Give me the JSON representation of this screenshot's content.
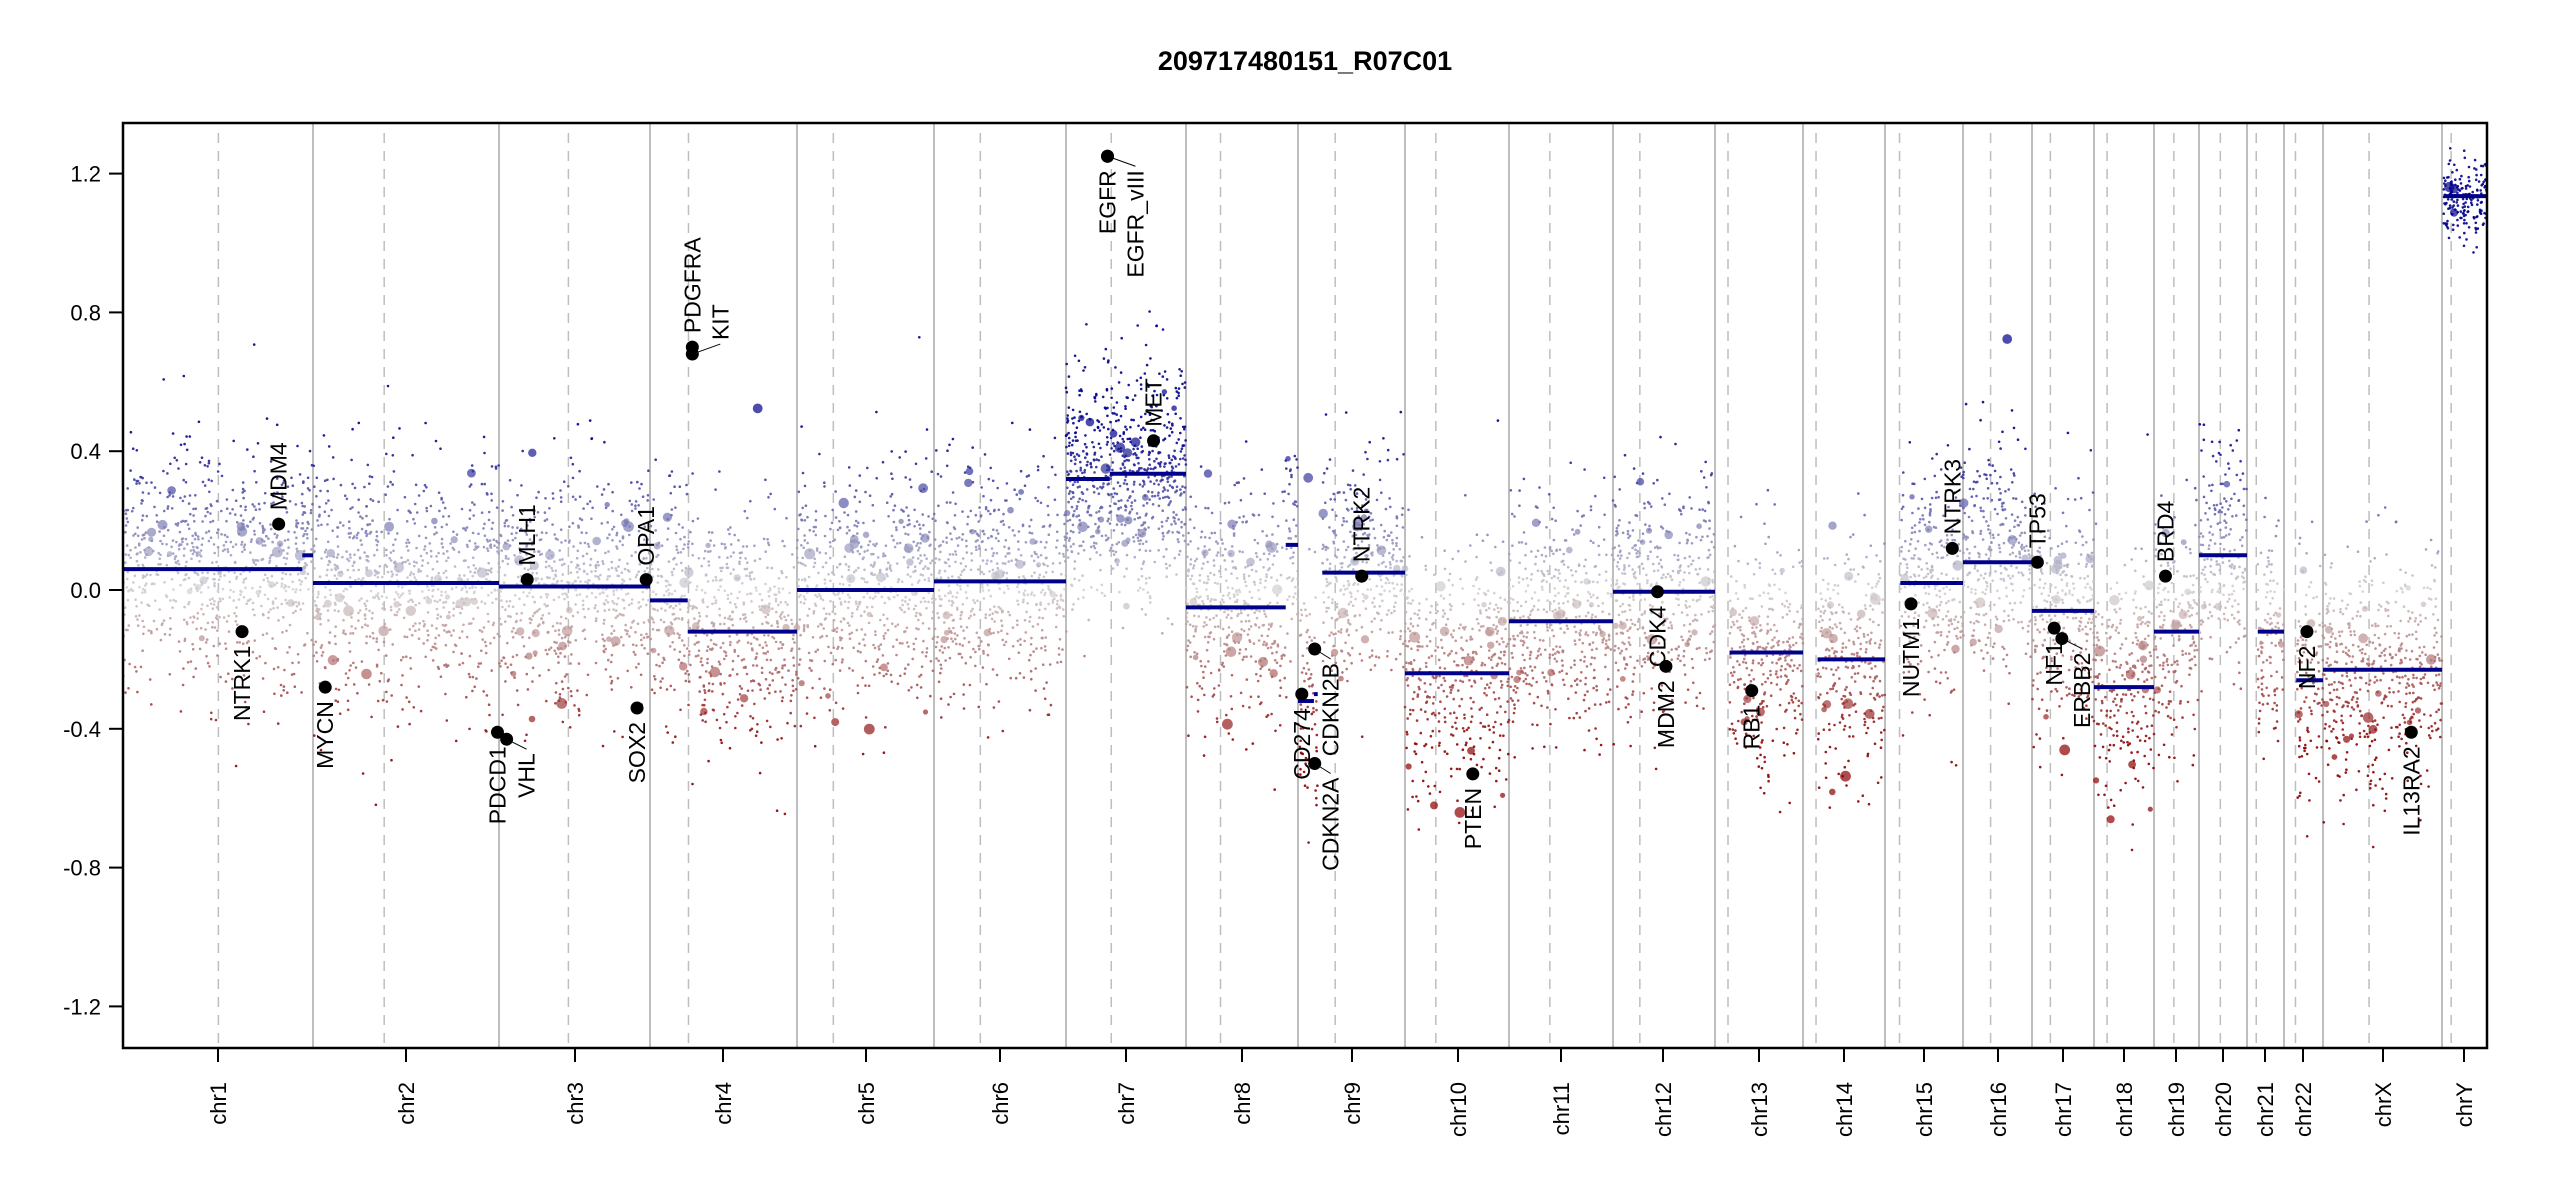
{
  "chart_data": {
    "type": "scatter",
    "title": "209717480151_R07C01",
    "xlabel": "",
    "ylabel": "",
    "ylim": [
      -1.35,
      1.35
    ],
    "yticks": [
      -1.2,
      -0.8,
      -0.4,
      0.0,
      0.4,
      0.8,
      1.2
    ],
    "ytick_labels": [
      "-1.2",
      "-0.8",
      "-0.4",
      "0.0",
      "0.4",
      "0.8",
      "1.2"
    ],
    "grid": false,
    "legend": "none",
    "chromosomes": [
      {
        "name": "chr1",
        "length": 249,
        "centromere": 125
      },
      {
        "name": "chr2",
        "length": 243,
        "centromere": 93
      },
      {
        "name": "chr3",
        "length": 198,
        "centromere": 91
      },
      {
        "name": "chr4",
        "length": 191,
        "centromere": 50
      },
      {
        "name": "chr5",
        "length": 181,
        "centromere": 48
      },
      {
        "name": "chr6",
        "length": 171,
        "centromere": 60
      },
      {
        "name": "chr7",
        "length": 159,
        "centromere": 60
      },
      {
        "name": "chr8",
        "length": 146,
        "centromere": 45
      },
      {
        "name": "chr9",
        "length": 141,
        "centromere": 49
      },
      {
        "name": "chr10",
        "length": 135,
        "centromere": 40
      },
      {
        "name": "chr11",
        "length": 135,
        "centromere": 53
      },
      {
        "name": "chr12",
        "length": 133,
        "centromere": 35
      },
      {
        "name": "chr13",
        "length": 115,
        "centromere": 17
      },
      {
        "name": "chr14",
        "length": 107,
        "centromere": 17
      },
      {
        "name": "chr15",
        "length": 102,
        "centromere": 19
      },
      {
        "name": "chr16",
        "length": 90,
        "centromere": 36
      },
      {
        "name": "chr17",
        "length": 81,
        "centromere": 24
      },
      {
        "name": "chr18",
        "length": 78,
        "centromere": 17
      },
      {
        "name": "chr19",
        "length": 59,
        "centromere": 26
      },
      {
        "name": "chr20",
        "length": 63,
        "centromere": 28
      },
      {
        "name": "chr21",
        "length": 48,
        "centromere": 12
      },
      {
        "name": "chr22",
        "length": 51,
        "centromere": 15
      },
      {
        "name": "chrX",
        "length": 155,
        "centromere": 60
      },
      {
        "name": "chrY",
        "length": 59,
        "centromere": 12
      }
    ],
    "segments": [
      {
        "chr": "chr1",
        "start": 0,
        "end": 235,
        "value": 0.06
      },
      {
        "chr": "chr1",
        "start": 235,
        "end": 249,
        "value": 0.1
      },
      {
        "chr": "chr2",
        "start": 0,
        "end": 243,
        "value": 0.02
      },
      {
        "chr": "chr3",
        "start": 0,
        "end": 198,
        "value": 0.01
      },
      {
        "chr": "chr4",
        "start": 0,
        "end": 49,
        "value": -0.03
      },
      {
        "chr": "chr4",
        "start": 49,
        "end": 191,
        "value": -0.12
      },
      {
        "chr": "chr5",
        "start": 0,
        "end": 181,
        "value": 0.0
      },
      {
        "chr": "chr6",
        "start": 0,
        "end": 171,
        "value": 0.025
      },
      {
        "chr": "chr7",
        "start": 0,
        "end": 58,
        "value": 0.32
      },
      {
        "chr": "chr7",
        "start": 58,
        "end": 159,
        "value": 0.335
      },
      {
        "chr": "chr8",
        "start": 0,
        "end": 130,
        "value": -0.05
      },
      {
        "chr": "chr8",
        "start": 130,
        "end": 146,
        "value": 0.13
      },
      {
        "chr": "chr9",
        "start": 0,
        "end": 21,
        "value": -0.32
      },
      {
        "chr": "chr9",
        "start": 21,
        "end": 26,
        "value": -0.3
      },
      {
        "chr": "chr9",
        "start": 32,
        "end": 141,
        "value": 0.05
      },
      {
        "chr": "chr10",
        "start": 0,
        "end": 135,
        "value": -0.24
      },
      {
        "chr": "chr11",
        "start": 0,
        "end": 135,
        "value": -0.09
      },
      {
        "chr": "chr12",
        "start": 0,
        "end": 133,
        "value": -0.005
      },
      {
        "chr": "chr13",
        "start": 19,
        "end": 115,
        "value": -0.18
      },
      {
        "chr": "chr14",
        "start": 19,
        "end": 107,
        "value": -0.2
      },
      {
        "chr": "chr15",
        "start": 20,
        "end": 102,
        "value": 0.02
      },
      {
        "chr": "chr16",
        "start": 0,
        "end": 90,
        "value": 0.08
      },
      {
        "chr": "chr17",
        "start": 0,
        "end": 81,
        "value": -0.06
      },
      {
        "chr": "chr18",
        "start": 0,
        "end": 78,
        "value": -0.28
      },
      {
        "chr": "chr19",
        "start": 0,
        "end": 59,
        "value": -0.12
      },
      {
        "chr": "chr20",
        "start": 0,
        "end": 63,
        "value": 0.1
      },
      {
        "chr": "chr21",
        "start": 14,
        "end": 48,
        "value": -0.12
      },
      {
        "chr": "chr22",
        "start": 16,
        "end": 51,
        "value": -0.26
      },
      {
        "chrX": true,
        "chr": "chrX",
        "start": 0,
        "end": 155,
        "value": -0.23
      },
      {
        "chr": "chrY",
        "start": 2,
        "end": 59,
        "value": 1.135
      }
    ],
    "genes": [
      {
        "name": "NTRK1",
        "chr": "chr1",
        "pos": 156,
        "value": -0.12,
        "side": "below"
      },
      {
        "name": "MDM4",
        "chr": "chr1",
        "pos": 204,
        "value": 0.19,
        "side": "above"
      },
      {
        "name": "MYCN",
        "chr": "chr2",
        "pos": 16,
        "value": -0.28,
        "side": "below"
      },
      {
        "name": "PDCD1",
        "chr": "chr2",
        "pos": 241,
        "value": -0.41,
        "side": "below"
      },
      {
        "name": "VHL",
        "chr": "chr3",
        "pos": 10,
        "value": -0.43,
        "side": "below"
      },
      {
        "name": "MLH1",
        "chr": "chr3",
        "pos": 37,
        "value": 0.03,
        "side": "above"
      },
      {
        "name": "SOX2",
        "chr": "chr3",
        "pos": 181,
        "value": -0.34,
        "side": "below"
      },
      {
        "name": "OPA1",
        "chr": "chr3",
        "pos": 193,
        "value": 0.03,
        "side": "above"
      },
      {
        "name": "PDGFRA",
        "chr": "chr4",
        "pos": 55,
        "value": 0.7,
        "side": "above"
      },
      {
        "name": "KIT",
        "chr": "chr4",
        "pos": 55,
        "value": 0.68,
        "side": "above"
      },
      {
        "name": "EGFR",
        "chr": "chr7",
        "pos": 55,
        "value": 1.25,
        "side": "below"
      },
      {
        "name": "EGFR_vIII",
        "chr": "chr7",
        "pos": 55,
        "value": 1.25,
        "side": "below"
      },
      {
        "name": "MET",
        "chr": "chr7",
        "pos": 116,
        "value": 0.43,
        "side": "above"
      },
      {
        "name": "CDKN2A",
        "chr": "chr9",
        "pos": 22,
        "value": -0.5,
        "side": "below"
      },
      {
        "name": "CDKN2B",
        "chr": "chr9",
        "pos": 22,
        "value": -0.17,
        "side": "below"
      },
      {
        "name": "CD274",
        "chr": "chr9",
        "pos": 5,
        "value": -0.3,
        "side": "below"
      },
      {
        "name": "NTRK2",
        "chr": "chr9",
        "pos": 84,
        "value": 0.04,
        "side": "above"
      },
      {
        "name": "PTEN",
        "chr": "chr10",
        "pos": 88,
        "value": -0.53,
        "side": "below"
      },
      {
        "name": "MDM2",
        "chr": "chr12",
        "pos": 69,
        "value": -0.22,
        "side": "below"
      },
      {
        "name": "CDK4",
        "chr": "chr12",
        "pos": 58,
        "value": -0.005,
        "side": "below"
      },
      {
        "name": "RB1",
        "chr": "chr13",
        "pos": 48,
        "value": -0.29,
        "side": "below"
      },
      {
        "name": "NUTM1",
        "chr": "chr15",
        "pos": 34,
        "value": -0.04,
        "side": "below"
      },
      {
        "name": "NTRK3",
        "chr": "chr15",
        "pos": 88,
        "value": 0.12,
        "side": "above"
      },
      {
        "name": "TP53",
        "chr": "chr17",
        "pos": 7,
        "value": 0.08,
        "side": "above"
      },
      {
        "name": "NF1",
        "chr": "chr17",
        "pos": 29,
        "value": -0.11,
        "side": "below"
      },
      {
        "name": "ERBB2",
        "chr": "chr17",
        "pos": 39,
        "value": -0.14,
        "side": "below"
      },
      {
        "name": "BRD4",
        "chr": "chr19",
        "pos": 15,
        "value": 0.04,
        "side": "above"
      },
      {
        "name": "NF2",
        "chr": "chr22",
        "pos": 30,
        "value": -0.12,
        "side": "below"
      },
      {
        "name": "IL13RA2",
        "chr": "chrX",
        "pos": 115,
        "value": -0.41,
        "side": "below"
      }
    ]
  },
  "colors": {
    "gain": "#00008b",
    "loss": "#8b0000",
    "neutral": "#d3d3d3",
    "segment": "#00008b",
    "boundary": "#bebebe",
    "gene_marker": "#000000"
  }
}
